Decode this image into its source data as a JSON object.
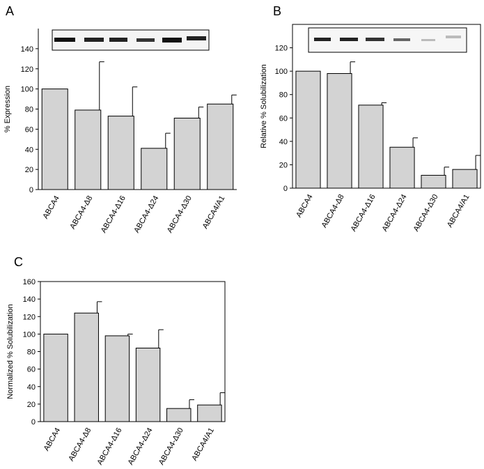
{
  "chart_data": [
    {
      "type": "bar",
      "panel": "A",
      "y_label": "% Expression",
      "categories": [
        "ABCA4",
        "ABCA4-Δ8",
        "ABCA4-Δ16",
        "ABCA4-Δ24",
        "ABCA4-Δ30",
        "ABCA4/A1"
      ],
      "values": [
        100,
        79,
        73,
        41,
        71,
        85
      ],
      "errors": [
        0,
        48,
        29,
        15,
        11,
        9
      ],
      "color": "#d3d3d3",
      "ylim": [
        0,
        160
      ],
      "yticks": [
        0,
        20,
        40,
        60,
        80,
        100,
        120,
        140
      ]
    },
    {
      "type": "bar",
      "panel": "B",
      "y_label": "Relative % Solubilization",
      "categories": [
        "ABCA4",
        "ABCA4-Δ8",
        "ABCA4-Δ16",
        "ABCA4-Δ24",
        "ABCA4-Δ30",
        "ABCA4/A1"
      ],
      "values": [
        100,
        98,
        71,
        35,
        11,
        16
      ],
      "errors": [
        0,
        10,
        2,
        8,
        7,
        12
      ],
      "color": "#d3d3d3",
      "ylim": [
        0,
        140
      ],
      "yticks": [
        0,
        20,
        40,
        60,
        80,
        100,
        120
      ]
    },
    {
      "type": "bar",
      "panel": "C",
      "y_label": "Normalized % Solubilization",
      "categories": [
        "ABCA4",
        "ABCA4-Δ8",
        "ABCA4-Δ16",
        "ABCA4-Δ24",
        "ABCA4-Δ30",
        "ABCA4/A1"
      ],
      "values": [
        100,
        124,
        98,
        84,
        15,
        19
      ],
      "errors": [
        0,
        13,
        2,
        21,
        10,
        14
      ],
      "color": "#d3d3d3",
      "ylim": [
        0,
        160
      ],
      "yticks": [
        0,
        20,
        40,
        60,
        80,
        100,
        120,
        140,
        160
      ]
    }
  ]
}
